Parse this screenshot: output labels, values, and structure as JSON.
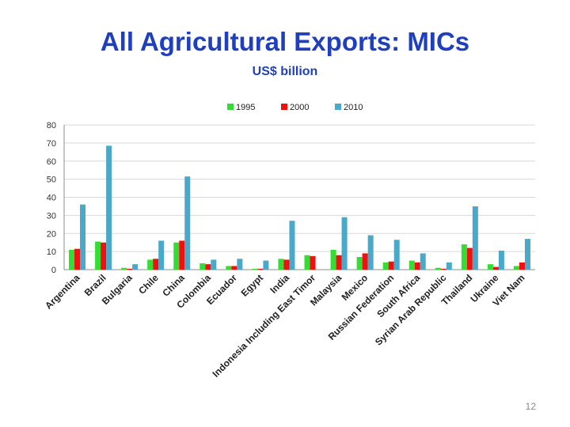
{
  "slide": {
    "title": "All Agricultural Exports: MICs",
    "subtitle": "US$ billion",
    "page_number": "12"
  },
  "colors": {
    "s1995": "#33dd33",
    "s2000": "#ee1111",
    "s2010": "#4aa8c8"
  },
  "chart_data": {
    "type": "bar",
    "title": "All Agricultural Exports: MICs",
    "subtitle": "US$ billion",
    "xlabel": "",
    "ylabel": "",
    "ylim": [
      0,
      80
    ],
    "yticks": [
      0,
      10,
      20,
      30,
      40,
      50,
      60,
      70,
      80
    ],
    "grid": true,
    "legend_position": "top",
    "categories": [
      "Argentina",
      "Brazil",
      "Bulgaria",
      "Chile",
      "China",
      "Colombia",
      "Ecuador",
      "Egypt",
      "India",
      "Indonesia Including East Timor",
      "Malaysia",
      "Mexico",
      "Russian Federation",
      "South Africa",
      "Syrian Arab Republic",
      "Thailand",
      "Ukraine",
      "Viet Nam"
    ],
    "series": [
      {
        "name": "1995",
        "values": [
          11,
          15.5,
          1,
          5.5,
          15,
          3.5,
          2,
          0.5,
          6,
          8,
          11,
          7,
          4,
          5,
          1,
          14,
          3,
          2
        ]
      },
      {
        "name": "2000",
        "values": [
          11.5,
          15,
          0.5,
          6,
          16,
          3,
          2,
          0.5,
          5.5,
          7.5,
          8,
          9,
          4.5,
          4,
          0.5,
          12,
          1.5,
          4
        ]
      },
      {
        "name": "2010",
        "values": [
          36,
          68.5,
          3,
          16,
          51.5,
          5.5,
          6,
          5,
          27,
          0,
          29,
          19,
          16.5,
          9,
          4,
          35,
          10.5,
          17
        ]
      }
    ]
  }
}
